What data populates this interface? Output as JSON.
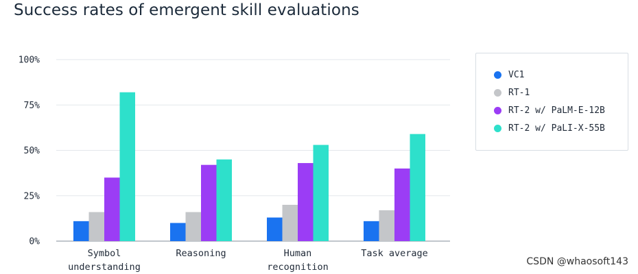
{
  "watermark": "CSDN @whaosoft143",
  "chart_data": {
    "type": "bar",
    "title": "Success rates of emergent skill evaluations",
    "xlabel": "",
    "ylabel": "",
    "ylim": [
      0,
      100
    ],
    "yticks": [
      0,
      25,
      50,
      75,
      100
    ],
    "ytick_labels": [
      "0%",
      "25%",
      "50%",
      "75%",
      "100%"
    ],
    "grid": true,
    "legend_position": "right",
    "categories": [
      [
        "Symbol",
        "understanding"
      ],
      [
        "Reasoning"
      ],
      [
        "Human",
        "recognition"
      ],
      [
        "Task average"
      ]
    ],
    "series": [
      {
        "name": "VC1",
        "color": "#1a73f0",
        "values": [
          11,
          10,
          13,
          11
        ]
      },
      {
        "name": "RT-1",
        "color": "#c4c6c9",
        "values": [
          16,
          16,
          20,
          17
        ]
      },
      {
        "name": "RT-2 w/ PaLM-E-12B",
        "color": "#9b3df5",
        "values": [
          35,
          42,
          43,
          40
        ]
      },
      {
        "name": "RT-2 w/ PaLI-X-55B",
        "color": "#2ee0cb",
        "values": [
          82,
          45,
          53,
          59
        ]
      }
    ]
  }
}
